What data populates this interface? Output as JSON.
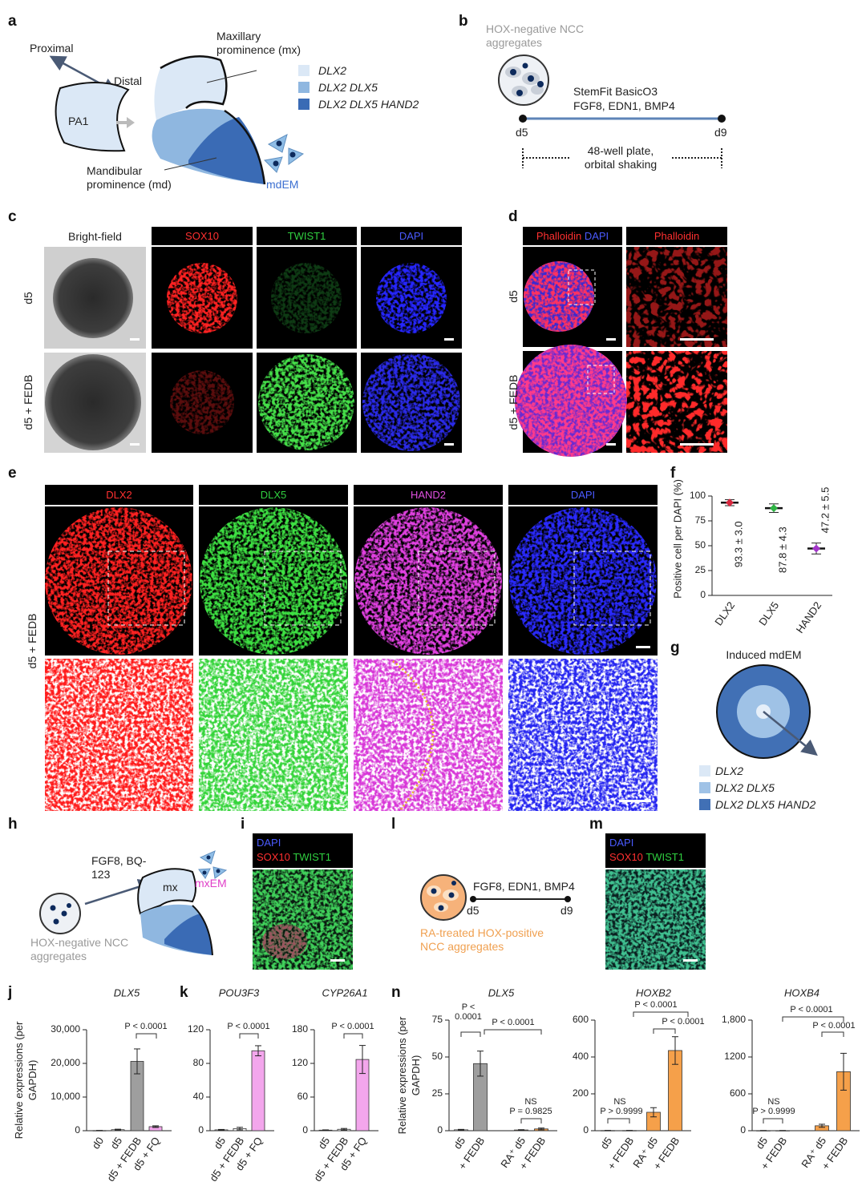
{
  "panels": {
    "a": {
      "label": "a",
      "proximal": "Proximal",
      "distal": "Distal",
      "pa1": "PA1",
      "maxillary": "Maxillary prominence (mx)",
      "mandibular": "Mandibular prominence (md)",
      "cell": "mdEM",
      "legend": [
        "DLX2",
        "DLX2 DLX5",
        "DLX2 DLX5 HAND2"
      ]
    },
    "b": {
      "label": "b",
      "aggregates": "HOX-negative NCC aggregates",
      "medium": "StemFit BasicO3",
      "factors": "FGF8, EDN1, BMP4",
      "start": "d5",
      "end": "d9",
      "culture": "48-well plate, orbital shaking"
    },
    "c": {
      "label": "c",
      "bright_field": "Bright-field",
      "channels": [
        "SOX10",
        "TWIST1",
        "DAPI"
      ],
      "rows": [
        "d5",
        "d5 + FEDB"
      ]
    },
    "d": {
      "label": "d",
      "headers": [
        [
          "Phalloidin",
          "DAPI"
        ],
        [
          "Phalloidin"
        ]
      ],
      "rows": [
        "d5",
        "d5 + FEDB"
      ]
    },
    "e": {
      "label": "e",
      "channels": [
        "DLX2",
        "DLX5",
        "HAND2",
        "DAPI"
      ],
      "row": "d5 + FEDB"
    },
    "f": {
      "label": "f"
    },
    "g": {
      "label": "g",
      "title": "Induced mdEM",
      "legend": [
        "DLX2",
        "DLX2 DLX5",
        "DLX2 DLX5 HAND2"
      ]
    },
    "h": {
      "label": "h",
      "factors": "FGF8, BQ-123",
      "target": "mx",
      "cell": "mxEM",
      "aggregates": "HOX-negative NCC aggregates"
    },
    "i": {
      "label": "i",
      "headers": [
        [
          "DAPI"
        ],
        [
          "SOX10",
          "TWIST1"
        ]
      ]
    },
    "j": {
      "label": "j"
    },
    "k": {
      "label": "k"
    },
    "l": {
      "label": "l",
      "factors": "FGF8, EDN1, BMP4",
      "start": "d5",
      "end": "d9",
      "aggregates": "RA-treated HOX-positive NCC aggregates"
    },
    "m": {
      "label": "m",
      "headers": [
        [
          "DAPI"
        ],
        [
          "SOX10",
          "TWIST1"
        ]
      ]
    },
    "n": {
      "label": "n"
    }
  },
  "chart_data": [
    {
      "type": "errorbar",
      "y_label": "Positive cell per DAPI (%)",
      "categories": [
        "DLX2",
        "DLX5",
        "HAND2"
      ],
      "values": [
        93.3,
        87.8,
        47.2
      ],
      "errors": [
        3.0,
        4.3,
        5.5
      ],
      "value_labels": [
        "93.3 ± 3.0",
        "87.8 ± 4.3",
        "47.2 ± 5.5"
      ],
      "colors": [
        "#d7263d",
        "#2fb344",
        "#a335c9"
      ],
      "ylim": [
        0,
        100
      ],
      "yticks": [
        0,
        25,
        50,
        75,
        100
      ]
    },
    {
      "type": "bar",
      "title": "DLX5",
      "y_label": "Relative expressions (per GAPDH)",
      "categories": [
        "d0",
        "d5",
        "d5 + FEDB",
        "d5 + FQ"
      ],
      "values": [
        50,
        300,
        20600,
        1200
      ],
      "errors": [
        30,
        150,
        3700,
        250
      ],
      "colors": [
        "#ffffff",
        "#ffffff",
        "#9e9e9e",
        "#f3a6ec"
      ],
      "ylim": [
        0,
        30000
      ],
      "yticks": [
        0,
        {
          "value": 10000,
          "label": "10,000"
        },
        {
          "value": 20000,
          "label": "20,000"
        },
        {
          "value": 30000,
          "label": "30,000"
        }
      ],
      "annotations": [
        "P < 0.0001"
      ]
    },
    {
      "type": "bar",
      "title": "POU3F3",
      "categories": [
        "d5",
        "d5 + FEDB",
        "d5 + FQ"
      ],
      "values": [
        1,
        2.5,
        95
      ],
      "errors": [
        0.5,
        1.5,
        6
      ],
      "colors": [
        "#ffffff",
        "#ffffff",
        "#f3a6ec"
      ],
      "ylim": [
        0,
        120
      ],
      "yticks": [
        0,
        40,
        80,
        120
      ],
      "annotations": [
        "P < 0.0001"
      ]
    },
    {
      "type": "bar",
      "title": "CYP26A1",
      "categories": [
        "d5",
        "d5 + FEDB",
        "d5 + FQ"
      ],
      "values": [
        1,
        2.5,
        127
      ],
      "errors": [
        0.5,
        1.5,
        25
      ],
      "colors": [
        "#ffffff",
        "#ffffff",
        "#f3a6ec"
      ],
      "ylim": [
        0,
        180
      ],
      "yticks": [
        0,
        60,
        120,
        180
      ],
      "annotations": [
        "P < 0.0001"
      ]
    },
    {
      "type": "bar",
      "title": "DLX5",
      "y_label": "Relative expressions (per GAPDH)",
      "categories": [
        "d5",
        "+ FEDB",
        "RA⁺ d5",
        "+ FEDB"
      ],
      "values": [
        0.6,
        45.5,
        0.5,
        1.2
      ],
      "errors": [
        0.3,
        8.5,
        0.2,
        0.6
      ],
      "colors": [
        "#ffffff",
        "#9e9e9e",
        "#f9c48f",
        "#f5a04a"
      ],
      "ylim": [
        0,
        75
      ],
      "yticks": [
        0,
        25,
        50,
        75
      ],
      "annotations": [
        "P < 0.0001",
        "P < 0.0001",
        "NS",
        "P = 0.9825"
      ]
    },
    {
      "type": "bar",
      "title": "HOXB2",
      "categories": [
        "d5",
        "+ FEDB",
        "RA⁺ d5",
        "+ FEDB"
      ],
      "values": [
        1,
        1,
        100,
        435
      ],
      "errors": [
        0.5,
        0.5,
        25,
        75
      ],
      "colors": [
        "#ffffff",
        "#9e9e9e",
        "#f5a04a",
        "#f5a04a"
      ],
      "ylim": [
        0,
        600
      ],
      "yticks": [
        0,
        200,
        400,
        600
      ],
      "annotations": [
        "NS",
        "P > 0.9999",
        "P < 0.0001",
        "P < 0.0001"
      ]
    },
    {
      "type": "bar",
      "title": "HOXB4",
      "categories": [
        "d5",
        "+ FEDB",
        "RA⁺ d5",
        "+ FEDB"
      ],
      "values": [
        2,
        2,
        80,
        960
      ],
      "errors": [
        1,
        1,
        25,
        300
      ],
      "colors": [
        "#ffffff",
        "#9e9e9e",
        "#f5a04a",
        "#f5a04a"
      ],
      "ylim": [
        0,
        1800
      ],
      "yticks": [
        0,
        600,
        1200,
        {
          "value": 1800,
          "label": "1,800"
        }
      ],
      "annotations": [
        "NS",
        "P > 0.9999",
        "P < 0.0001",
        "P < 0.0001"
      ]
    }
  ]
}
